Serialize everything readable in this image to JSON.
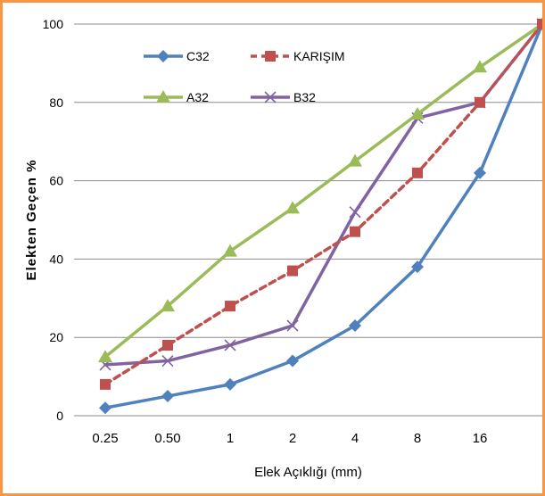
{
  "chart_data": {
    "type": "line",
    "title": "",
    "xlabel": "Elek Açıklığı (mm)",
    "ylabel": "Elekten Geçen %",
    "categories": [
      "0.25",
      "0.50",
      "1",
      "2",
      "4",
      "8",
      "16",
      ""
    ],
    "ylim": [
      0,
      100
    ],
    "yticks": [
      0,
      20,
      40,
      60,
      80,
      100
    ],
    "grid": true,
    "legend_position": "top-left",
    "series": [
      {
        "name": "C32",
        "color": "#4F81BD",
        "marker": "diamond",
        "dash": "solid",
        "values": [
          2,
          5,
          8,
          14,
          23,
          38,
          62,
          100
        ]
      },
      {
        "name": "KARIŞIM",
        "color": "#C0504D",
        "marker": "square",
        "dash": "dashed",
        "values": [
          8,
          18,
          28,
          37,
          47,
          62,
          80,
          100
        ]
      },
      {
        "name": "A32",
        "color": "#9BBB59",
        "marker": "triangle",
        "dash": "solid",
        "values": [
          15,
          28,
          42,
          53,
          65,
          77,
          89,
          100
        ]
      },
      {
        "name": "B32",
        "color": "#8064A2",
        "marker": "x",
        "dash": "solid",
        "values": [
          13,
          14,
          18,
          23,
          52,
          76,
          80,
          100
        ]
      }
    ]
  }
}
